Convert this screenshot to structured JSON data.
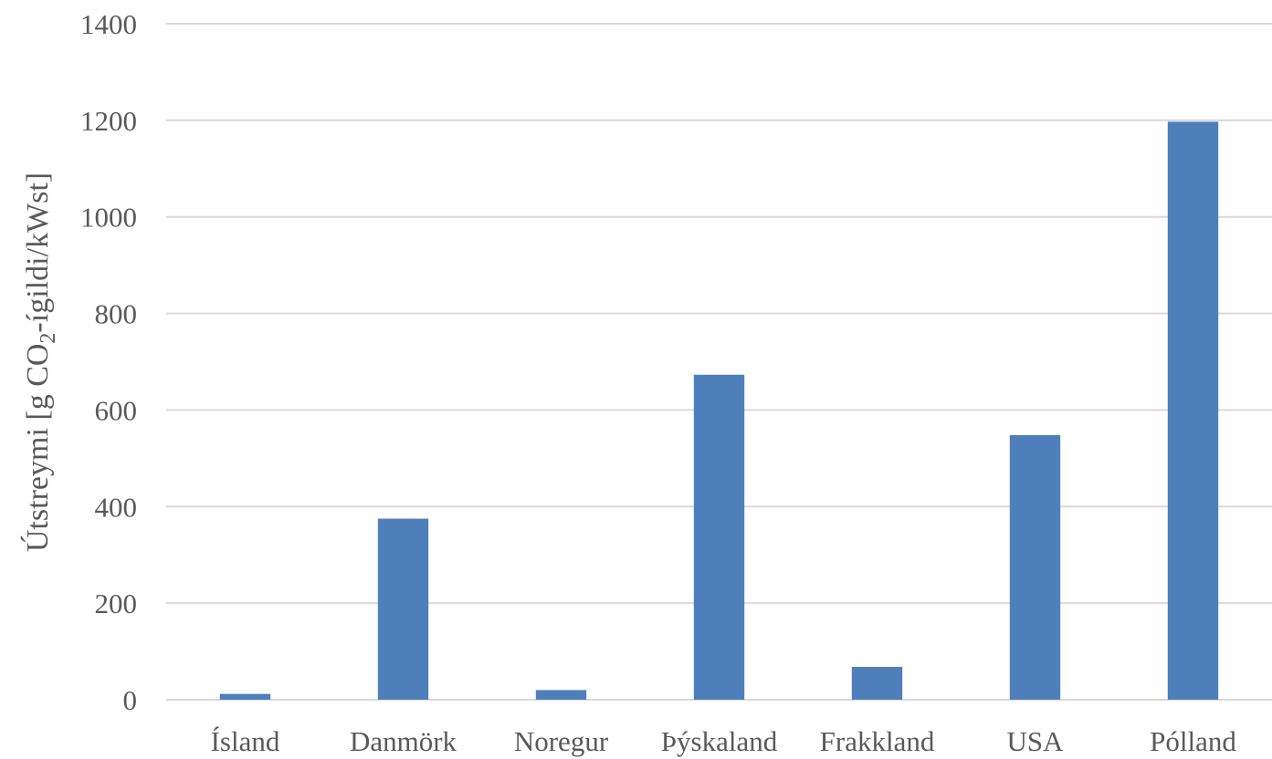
{
  "chart_data": {
    "type": "bar",
    "title": "",
    "xlabel": "",
    "ylabel": {
      "main": "Útstreymi [g CO",
      "sub": "2",
      "rest": "-ígildi/kWst]"
    },
    "categories": [
      "Ísland",
      "Danmörk",
      "Noregur",
      "Þýskaland",
      "Frakkland",
      "USA",
      "Pólland"
    ],
    "values": [
      12,
      375,
      20,
      673,
      68,
      548,
      1197
    ],
    "ylim": [
      0,
      1400
    ],
    "yticks": [
      0,
      200,
      400,
      600,
      800,
      1000,
      1200,
      1400
    ],
    "ytick_labels": [
      "0",
      "200",
      "400",
      "600",
      "800",
      "1000",
      "1200",
      "1400"
    ],
    "grid": true,
    "legend": "none",
    "colors": {
      "bar": "#4e7fbb",
      "grid": "#d9d9d9",
      "text": "#595959"
    }
  }
}
